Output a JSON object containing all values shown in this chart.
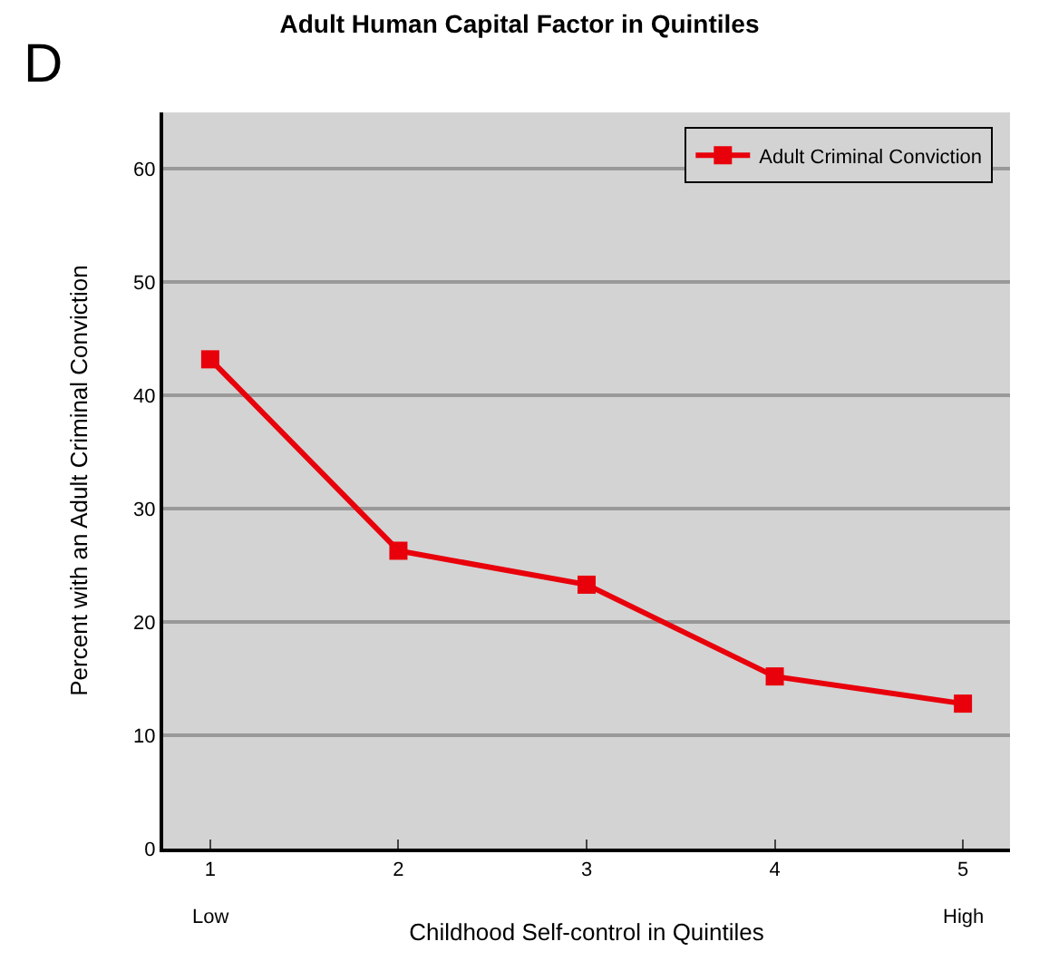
{
  "chart_data": {
    "type": "line",
    "title": "Adult Human Capital Factor in Quintiles",
    "xlabel": "Childhood Self-control in Quintiles",
    "ylabel": "Percent with an Adult Criminal Conviction",
    "annotations": [
      "D",
      "Low",
      "High"
    ],
    "x": [
      1,
      2,
      3,
      4,
      5
    ],
    "series": [
      {
        "name": "Adult Criminal Conviction",
        "color": "#e8000b",
        "values": [
          43.2,
          26.3,
          23.3,
          15.2,
          12.8
        ]
      }
    ],
    "xlim": [
      0.75,
      5.25
    ],
    "xticks": [
      1,
      2,
      3,
      4,
      5
    ],
    "ylim": [
      0,
      65
    ],
    "yticks": [
      0,
      10,
      20,
      30,
      40,
      50,
      60
    ],
    "grid": "y",
    "legend": "top right",
    "marker": "square",
    "line_style": "solid"
  }
}
